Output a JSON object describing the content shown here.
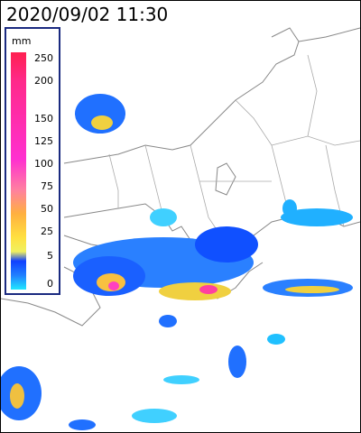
{
  "header": {
    "timestamp": "2020/09/02 11:30"
  },
  "legend": {
    "unit": "mm",
    "ticks": [
      250,
      200,
      150,
      125,
      100,
      75,
      50,
      25,
      5,
      0
    ]
  }
}
